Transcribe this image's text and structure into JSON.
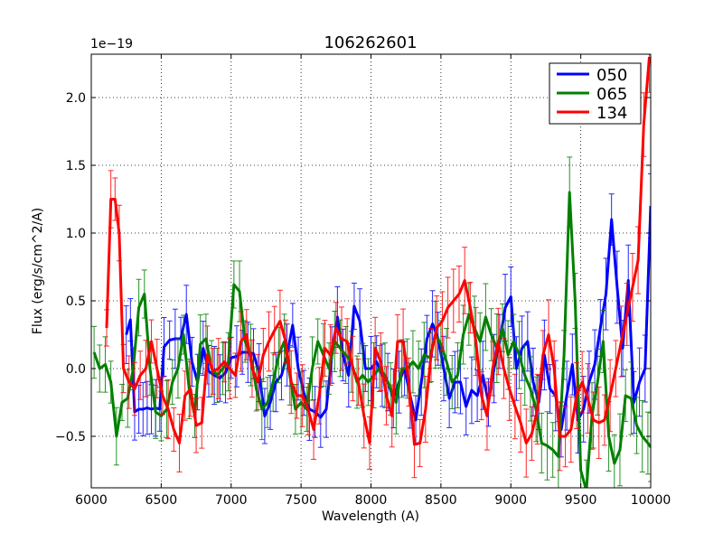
{
  "chart_data": {
    "type": "line",
    "title": "106262601",
    "xlabel": "Wavelength (A)",
    "ylabel": "Flux (erg/s/cm^2/A)",
    "y_offset_label": "1e−19",
    "xlim": [
      6000,
      10000
    ],
    "ylim": [
      -0.88,
      2.32
    ],
    "grid": true,
    "legend_position": "top-right",
    "x_ticks": [
      6000,
      6500,
      7000,
      7500,
      8000,
      8500,
      9000,
      9500,
      10000
    ],
    "x_tick_labels": [
      "6000",
      "6500",
      "7000",
      "7500",
      "8000",
      "8500",
      "9000",
      "9500",
      "10000"
    ],
    "y_ticks": [
      -0.5,
      0.0,
      0.5,
      1.0,
      1.5,
      2.0
    ],
    "y_tick_labels": [
      "−0.5",
      "0.0",
      "0.5",
      "1.0",
      "1.5",
      "2.0"
    ],
    "series": [
      {
        "name": "050",
        "color": "#0000ff",
        "x": [
          6250,
          6280,
          6310,
          6340,
          6370,
          6400,
          6430,
          6460,
          6490,
          6520,
          6560,
          6600,
          6640,
          6680,
          6720,
          6760,
          6800,
          6840,
          6880,
          6920,
          6960,
          7000,
          7040,
          7080,
          7120,
          7160,
          7200,
          7240,
          7280,
          7320,
          7360,
          7400,
          7440,
          7480,
          7520,
          7560,
          7600,
          7640,
          7680,
          7720,
          7760,
          7800,
          7840,
          7880,
          7920,
          7960,
          8000,
          8040,
          8080,
          8120,
          8160,
          8200,
          8240,
          8280,
          8320,
          8360,
          8400,
          8440,
          8480,
          8520,
          8560,
          8600,
          8640,
          8680,
          8720,
          8760,
          8800,
          8840,
          8880,
          8920,
          8960,
          9000,
          9040,
          9080,
          9120,
          9160,
          9200,
          9240,
          9280,
          9320,
          9360,
          9400,
          9440,
          9480,
          9520,
          9560,
          9600,
          9640,
          9680,
          9720,
          9760,
          9800,
          9840,
          9880,
          9920,
          9960,
          10000
        ],
        "values": [
          0.25,
          0.36,
          -0.32,
          -0.3,
          -0.3,
          -0.29,
          -0.3,
          -0.29,
          -0.3,
          0.16,
          0.21,
          0.22,
          0.22,
          0.4,
          0.05,
          -0.1,
          0.15,
          -0.02,
          -0.05,
          -0.07,
          -0.03,
          0.08,
          0.09,
          0.12,
          0.12,
          0.11,
          -0.03,
          -0.35,
          -0.25,
          -0.1,
          -0.05,
          0.1,
          0.32,
          0.0,
          -0.18,
          -0.3,
          -0.32,
          -0.36,
          -0.3,
          0.1,
          0.38,
          0.1,
          -0.05,
          0.46,
          0.35,
          0.0,
          0.0,
          0.05,
          -0.05,
          -0.1,
          -0.22,
          -0.1,
          0.0,
          -0.2,
          -0.38,
          -0.1,
          0.22,
          0.33,
          0.22,
          0.0,
          -0.22,
          -0.1,
          -0.1,
          -0.28,
          -0.16,
          -0.2,
          -0.05,
          -0.25,
          0.0,
          0.2,
          0.45,
          0.53,
          0.0,
          0.15,
          0.2,
          -0.1,
          -0.25,
          0.1,
          -0.15,
          -0.2,
          -0.45,
          -0.2,
          0.03,
          -0.38,
          -0.3,
          -0.1,
          0.03,
          0.3,
          0.55,
          1.1,
          0.6,
          0.15,
          0.65,
          -0.25,
          -0.1,
          0.0,
          1.2
        ]
      },
      {
        "name": "065",
        "color": "#008000",
        "x": [
          6020,
          6060,
          6100,
          6140,
          6180,
          6220,
          6260,
          6300,
          6340,
          6380,
          6420,
          6460,
          6500,
          6540,
          6580,
          6620,
          6660,
          6700,
          6740,
          6780,
          6820,
          6860,
          6900,
          6940,
          6980,
          7020,
          7060,
          7100,
          7140,
          7180,
          7220,
          7260,
          7300,
          7340,
          7380,
          7420,
          7460,
          7500,
          7540,
          7580,
          7620,
          7660,
          7700,
          7740,
          7780,
          7820,
          7860,
          7900,
          7940,
          7980,
          8020,
          8060,
          8100,
          8140,
          8180,
          8220,
          8260,
          8300,
          8340,
          8380,
          8420,
          8460,
          8500,
          8540,
          8580,
          8620,
          8660,
          8700,
          8740,
          8780,
          8820,
          8860,
          8900,
          8940,
          8980,
          9020,
          9060,
          9100,
          9140,
          9180,
          9220,
          9260,
          9300,
          9340,
          9380,
          9420,
          9460,
          9500,
          9540,
          9580,
          9620,
          9660,
          9700,
          9740,
          9780,
          9820,
          9860,
          9900,
          9940,
          9980,
          10000
        ],
        "values": [
          0.12,
          0.0,
          0.03,
          -0.1,
          -0.5,
          -0.25,
          -0.22,
          0.0,
          0.45,
          0.55,
          0.0,
          -0.32,
          -0.35,
          -0.3,
          -0.1,
          0.0,
          0.25,
          -0.15,
          -0.35,
          0.18,
          0.22,
          0.0,
          -0.05,
          0.0,
          0.05,
          0.62,
          0.57,
          0.2,
          0.1,
          -0.15,
          -0.3,
          -0.25,
          -0.1,
          0.1,
          0.2,
          -0.05,
          -0.3,
          -0.25,
          -0.3,
          0.0,
          0.2,
          0.1,
          0.0,
          0.2,
          0.15,
          0.1,
          0.05,
          -0.1,
          -0.05,
          -0.1,
          -0.05,
          0.0,
          -0.05,
          -0.15,
          -0.25,
          0.0,
          0.0,
          0.05,
          0.0,
          0.1,
          0.08,
          0.25,
          0.18,
          0.05,
          -0.1,
          -0.05,
          0.25,
          0.4,
          0.3,
          0.2,
          0.38,
          0.25,
          0.15,
          0.3,
          0.1,
          0.2,
          0.1,
          -0.05,
          -0.15,
          -0.3,
          -0.55,
          -0.57,
          -0.6,
          -0.65,
          0.1,
          1.3,
          0.5,
          -0.75,
          -0.9,
          -0.35,
          -0.1,
          0.2,
          -0.5,
          -0.7,
          -0.6,
          -0.2,
          -0.22,
          -0.42,
          -0.5,
          -0.55,
          -0.58
        ]
      },
      {
        "name": "134",
        "color": "#ff0000",
        "x": [
          6110,
          6140,
          6170,
          6200,
          6230,
          6270,
          6310,
          6350,
          6390,
          6430,
          6470,
          6510,
          6550,
          6590,
          6630,
          6670,
          6710,
          6750,
          6790,
          6830,
          6870,
          6910,
          6950,
          6990,
          7030,
          7070,
          7110,
          7150,
          7190,
          7230,
          7270,
          7310,
          7350,
          7390,
          7430,
          7470,
          7510,
          7550,
          7590,
          7630,
          7670,
          7710,
          7750,
          7790,
          7830,
          7870,
          7910,
          7950,
          7990,
          8030,
          8070,
          8110,
          8150,
          8190,
          8230,
          8270,
          8310,
          8350,
          8390,
          8430,
          8470,
          8510,
          8550,
          8590,
          8630,
          8670,
          8710,
          8750,
          8790,
          8830,
          8870,
          8910,
          8950,
          8990,
          9030,
          9070,
          9110,
          9150,
          9190,
          9230,
          9270,
          9310,
          9350,
          9390,
          9430,
          9470,
          9510,
          9550,
          9590,
          9630,
          9670,
          9710,
          9750,
          9790,
          9830,
          9870,
          9910,
          9950,
          9990
        ],
        "values": [
          0.3,
          1.25,
          1.25,
          1.0,
          0.0,
          -0.1,
          -0.15,
          -0.05,
          0.0,
          0.2,
          0.0,
          -0.2,
          -0.3,
          -0.45,
          -0.55,
          -0.2,
          -0.15,
          -0.42,
          -0.4,
          0.1,
          -0.02,
          0.0,
          0.05,
          0.0,
          -0.05,
          0.2,
          0.25,
          0.0,
          -0.1,
          0.1,
          0.2,
          0.28,
          0.35,
          0.2,
          -0.1,
          -0.2,
          -0.2,
          -0.3,
          -0.45,
          -0.2,
          0.15,
          0.1,
          0.3,
          0.22,
          0.2,
          0.0,
          -0.1,
          -0.35,
          -0.55,
          0.15,
          0.05,
          -0.2,
          -0.35,
          0.2,
          0.2,
          -0.1,
          -0.56,
          -0.55,
          -0.3,
          0.1,
          0.3,
          0.35,
          0.45,
          0.5,
          0.55,
          0.65,
          0.45,
          0.2,
          -0.2,
          -0.35,
          0.0,
          0.2,
          0.0,
          -0.15,
          -0.28,
          -0.4,
          -0.55,
          -0.48,
          -0.3,
          0.1,
          0.25,
          0.0,
          -0.5,
          -0.5,
          -0.45,
          -0.2,
          -0.1,
          -0.22,
          -0.38,
          -0.4,
          -0.38,
          -0.2,
          0.0,
          0.2,
          0.4,
          0.6,
          0.8,
          1.8,
          2.3
        ]
      }
    ]
  }
}
